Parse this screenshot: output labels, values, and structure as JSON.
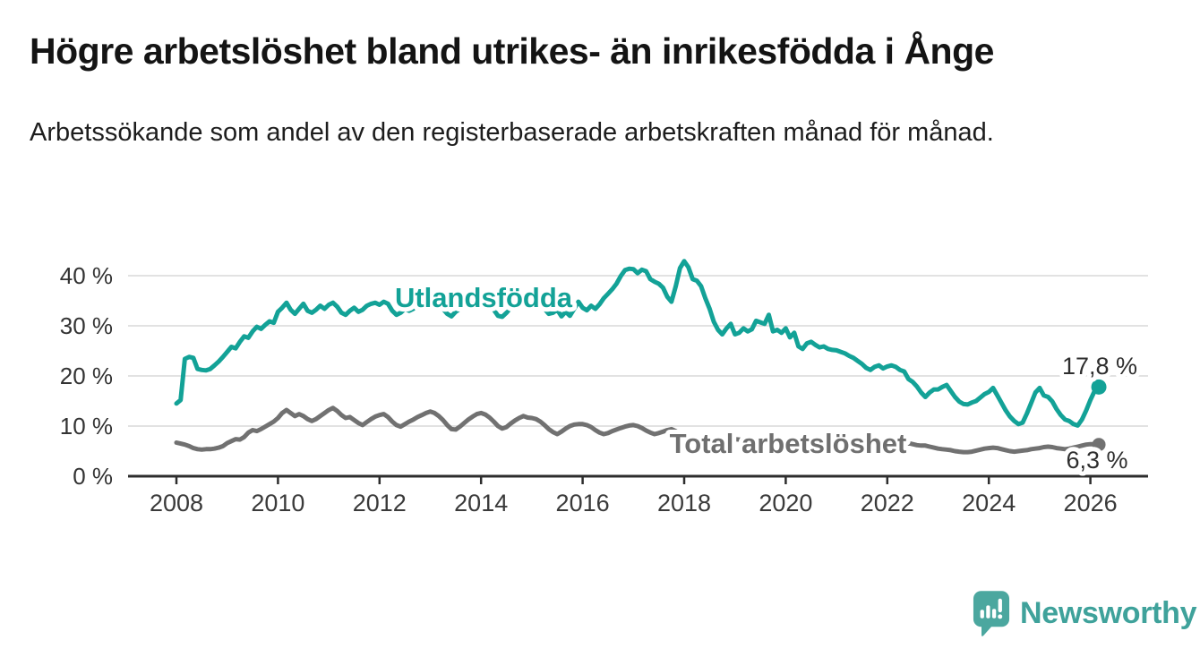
{
  "header": {
    "title": "Högre arbetslöshet bland utrikes- än inrikesfödda i Ånge",
    "subtitle": "Arbetssökande som andel av den registerbaserade arbetskraften månad för månad."
  },
  "chart_data": {
    "type": "line",
    "title": "Högre arbetslöshet bland utrikes- än inrikesfödda i Ånge",
    "x_start_year": 2008,
    "points_per_year": 12,
    "x_tick_years": [
      2008,
      2010,
      2012,
      2014,
      2016,
      2018,
      2020,
      2022,
      2024,
      2026
    ],
    "y_ticks": [
      0,
      10,
      20,
      30,
      40
    ],
    "y_tick_labels": [
      "0 %",
      "10 %",
      "20 %",
      "30 %",
      "40 %"
    ],
    "ylim": [
      0,
      44
    ],
    "grid": true,
    "legend_position": "inline-labels",
    "series": [
      {
        "name": "Utlandsfödda",
        "color": "#13a297",
        "end_label": "17,8 %",
        "end_value": 17.8,
        "values": [
          14.5,
          15.2,
          23.4,
          23.8,
          23.6,
          21.4,
          21.2,
          21.1,
          21.4,
          22.1,
          22.9,
          23.8,
          24.8,
          25.8,
          25.5,
          26.8,
          27.9,
          27.6,
          28.9,
          29.8,
          29.4,
          30.2,
          30.9,
          30.6,
          32.8,
          33.6,
          34.6,
          33.2,
          32.4,
          33.4,
          34.4,
          33.0,
          32.6,
          33.2,
          34.0,
          33.4,
          34.2,
          34.6,
          33.8,
          32.6,
          32.2,
          33.0,
          33.6,
          32.8,
          33.2,
          34.0,
          34.4,
          34.6,
          34.2,
          34.8,
          34.4,
          33.0,
          32.2,
          32.6,
          33.4,
          33.0,
          33.4,
          34.2,
          34.6,
          34.2,
          34.4,
          34.8,
          34.2,
          33.4,
          32.4,
          31.9,
          32.8,
          33.4,
          33.8,
          34.4,
          34.8,
          34.4,
          34.6,
          35.0,
          34.4,
          33.2,
          32.0,
          31.8,
          32.6,
          33.6,
          34.0,
          34.6,
          35.0,
          34.6,
          34.8,
          35.2,
          34.6,
          33.4,
          32.4,
          32.6,
          33.2,
          31.9,
          32.8,
          32.0,
          33.4,
          34.8,
          33.6,
          33.1,
          34.0,
          33.4,
          34.3,
          35.5,
          36.4,
          37.3,
          38.4,
          39.9,
          41.1,
          41.4,
          41.3,
          40.5,
          41.2,
          40.9,
          39.3,
          38.8,
          38.4,
          37.6,
          35.8,
          34.8,
          37.9,
          41.5,
          42.9,
          41.7,
          39.3,
          39.0,
          37.9,
          35.5,
          33.4,
          30.8,
          29.2,
          28.3,
          29.5,
          30.4,
          28.3,
          28.6,
          29.5,
          28.9,
          29.3,
          31.0,
          30.7,
          30.4,
          32.2,
          28.9,
          29.2,
          28.6,
          29.5,
          27.7,
          28.6,
          25.9,
          25.4,
          26.5,
          26.8,
          26.2,
          25.7,
          25.9,
          25.4,
          25.2,
          25.1,
          24.8,
          24.5,
          24.0,
          23.6,
          23.0,
          22.4,
          21.6,
          21.2,
          21.8,
          22.1,
          21.5,
          21.9,
          22.1,
          21.8,
          21.2,
          20.9,
          19.4,
          18.8,
          17.9,
          16.7,
          15.8,
          16.7,
          17.3,
          17.3,
          17.8,
          18.2,
          17.0,
          15.8,
          14.9,
          14.4,
          14.3,
          14.7,
          15.0,
          15.7,
          16.4,
          16.8,
          17.6,
          16.1,
          14.6,
          13.1,
          11.9,
          11.0,
          10.4,
          10.7,
          12.5,
          14.6,
          16.7,
          17.6,
          16.1,
          15.8,
          14.9,
          13.4,
          12.2,
          11.3,
          11.0,
          10.4,
          10.1,
          11.3,
          13.1,
          15.2,
          17.0,
          17.8
        ]
      },
      {
        "name": "Total arbetslöshet",
        "color": "#717171",
        "end_label": "6,3 %",
        "end_value": 6.3,
        "values": [
          6.7,
          6.5,
          6.3,
          6.0,
          5.6,
          5.4,
          5.3,
          5.4,
          5.4,
          5.5,
          5.7,
          6.0,
          6.6,
          7.0,
          7.4,
          7.3,
          7.8,
          8.7,
          9.2,
          9.0,
          9.4,
          9.9,
          10.4,
          10.9,
          11.6,
          12.6,
          13.2,
          12.6,
          12.0,
          12.4,
          12.0,
          11.4,
          11.0,
          11.4,
          12.0,
          12.6,
          13.2,
          13.6,
          13.0,
          12.2,
          11.6,
          11.8,
          11.2,
          10.6,
          10.2,
          10.8,
          11.4,
          11.9,
          12.2,
          12.4,
          11.8,
          10.9,
          10.2,
          9.9,
          10.4,
          10.9,
          11.3,
          11.8,
          12.2,
          12.6,
          12.9,
          12.6,
          12.0,
          11.2,
          10.2,
          9.4,
          9.3,
          9.9,
          10.6,
          11.3,
          11.9,
          12.4,
          12.6,
          12.3,
          11.7,
          10.9,
          10.0,
          9.5,
          9.8,
          10.5,
          11.1,
          11.6,
          12.0,
          11.7,
          11.6,
          11.4,
          10.9,
          10.2,
          9.4,
          8.8,
          8.4,
          8.9,
          9.5,
          10.0,
          10.3,
          10.4,
          10.4,
          10.2,
          9.8,
          9.2,
          8.7,
          8.4,
          8.6,
          9.0,
          9.3,
          9.6,
          9.9,
          10.1,
          10.2,
          10.0,
          9.6,
          9.1,
          8.7,
          8.4,
          8.6,
          8.9,
          9.2,
          9.4,
          9.0,
          8.4,
          8.2,
          8.0,
          7.8,
          7.5,
          7.2,
          7.0,
          6.9,
          7.0,
          7.1,
          7.2,
          7.3,
          7.4,
          7.4,
          7.3,
          7.2,
          7.0,
          6.9,
          7.0,
          7.1,
          7.0,
          6.9,
          6.8,
          6.9,
          7.0,
          7.0,
          7.2,
          7.4,
          7.6,
          7.7,
          7.6,
          7.5,
          7.3,
          7.1,
          7.0,
          6.9,
          6.9,
          6.9,
          6.8,
          6.7,
          6.6,
          6.5,
          6.4,
          6.3,
          6.2,
          6.2,
          6.3,
          6.4,
          6.5,
          6.6,
          6.6,
          6.5,
          6.4,
          6.3,
          6.6,
          6.4,
          6.2,
          6.1,
          6.1,
          5.9,
          5.7,
          5.5,
          5.4,
          5.3,
          5.2,
          5.0,
          4.9,
          4.8,
          4.8,
          4.9,
          5.1,
          5.3,
          5.5,
          5.6,
          5.7,
          5.6,
          5.4,
          5.2,
          5.0,
          4.9,
          5.0,
          5.1,
          5.2,
          5.4,
          5.5,
          5.6,
          5.8,
          5.9,
          5.8,
          5.6,
          5.5,
          5.4,
          5.5,
          5.7,
          5.9,
          6.1,
          6.3,
          6.4,
          6.4,
          6.3
        ]
      }
    ]
  },
  "footer": {
    "brand": "Newsworthy",
    "brand_color": "#3fa29b",
    "logo_icon": "speech-bubble-bar-chart-exclamation",
    "logo_icon_color": "#4ba79f"
  }
}
